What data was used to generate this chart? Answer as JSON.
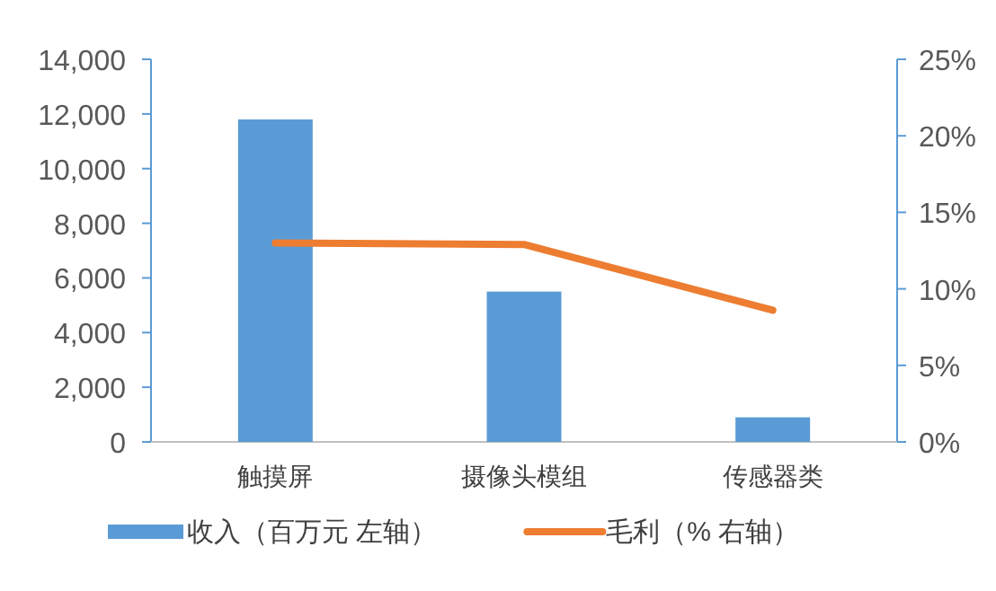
{
  "chart_data": {
    "type": "bar",
    "categories": [
      "触摸屏",
      "摄像头模组",
      "传感器类"
    ],
    "series": [
      {
        "name": "收入（百万元 左轴）",
        "color": "#5b9bd5",
        "values": [
          11800,
          5500,
          900
        ]
      },
      {
        "name": "毛利（% 右轴）",
        "type": "line",
        "axis": "y2",
        "color": "#ed7d31",
        "values": [
          13,
          12.9,
          8.6
        ]
      }
    ],
    "ylim": [
      0,
      14000
    ],
    "yticks": [
      {
        "value": 0,
        "label": "0"
      },
      {
        "value": 2000,
        "label": "2,000"
      },
      {
        "value": 4000,
        "label": "4,000"
      },
      {
        "value": 6000,
        "label": "6,000"
      },
      {
        "value": 8000,
        "label": "8,000"
      },
      {
        "value": 10000,
        "label": "10,000"
      },
      {
        "value": 12000,
        "label": "12,000"
      },
      {
        "value": 14000,
        "label": "14,000"
      }
    ],
    "y2lim": [
      0,
      25
    ],
    "y2ticks": [
      {
        "value": 0,
        "label": "0%"
      },
      {
        "value": 5,
        "label": "5%"
      },
      {
        "value": 10,
        "label": "10%"
      },
      {
        "value": 15,
        "label": "15%"
      },
      {
        "value": 20,
        "label": "20%"
      },
      {
        "value": 25,
        "label": "25%"
      }
    ],
    "legend": "bottom"
  }
}
